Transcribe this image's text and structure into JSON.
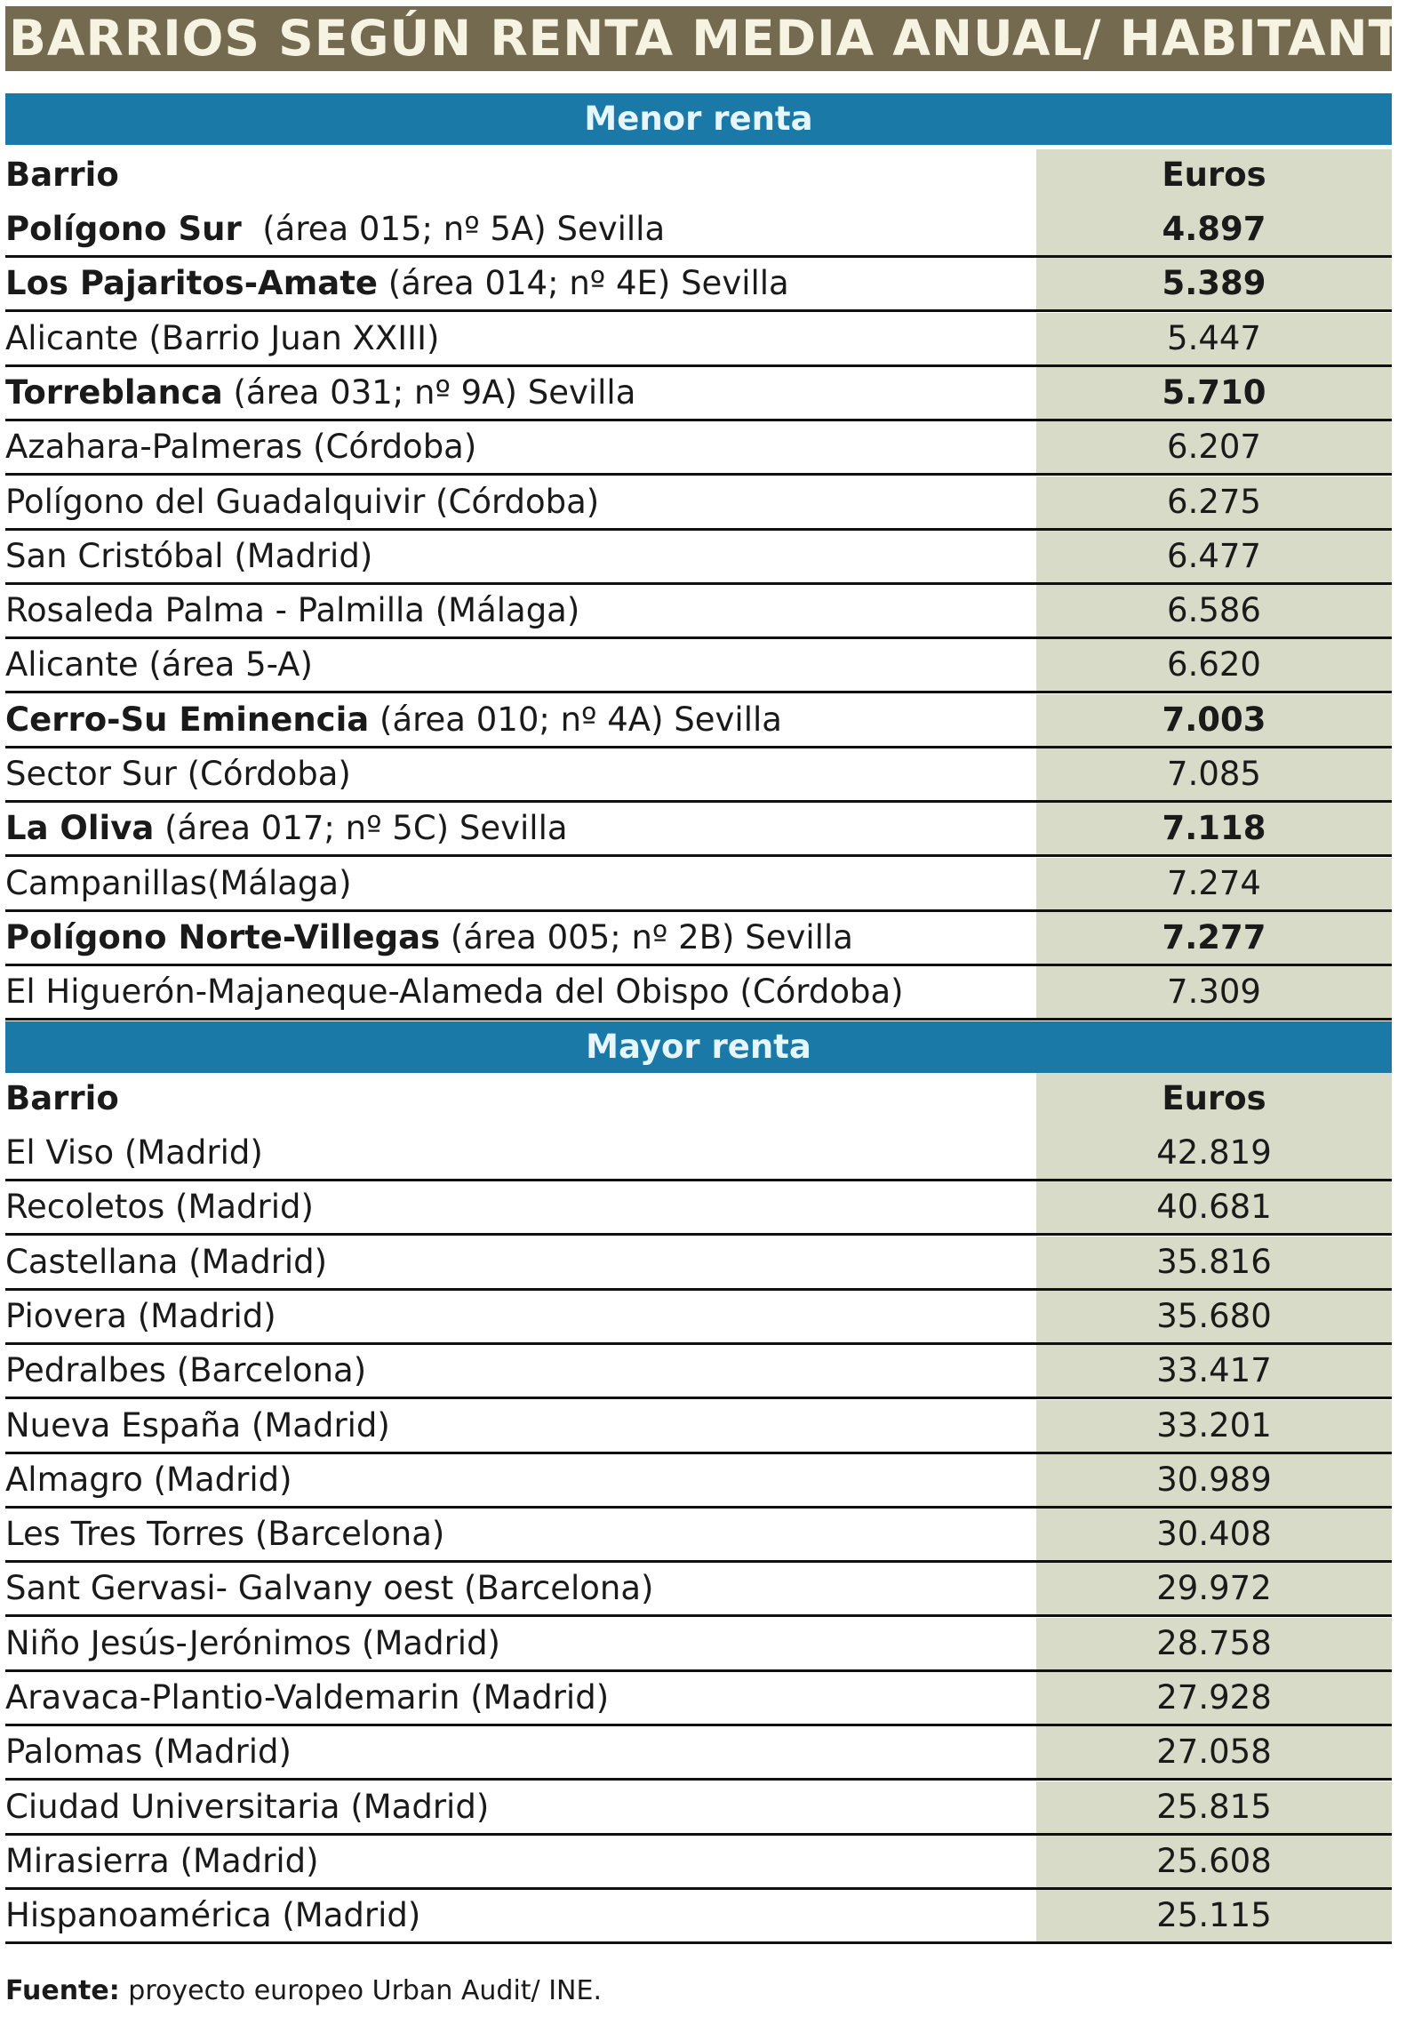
{
  "title": "BARRIOS SEGÚN RENTA MEDIA ANUAL/ HABITANTE",
  "sections": [
    {
      "label": "Menor renta",
      "col_barrio": "Barrio",
      "col_euros": "Euros",
      "rows": [
        {
          "name_bold": "Polígono Sur",
          "name_rest": "  (área 015; nº 5A) Sevilla",
          "value": "4.897",
          "bold": true
        },
        {
          "name_bold": "Los Pajaritos-Amate",
          "name_rest": " (área 014; nº 4E) Sevilla",
          "value": "5.389",
          "bold": true
        },
        {
          "name_bold": "",
          "name_rest": "Alicante (Barrio Juan XXIII)",
          "value": "5.447",
          "bold": false
        },
        {
          "name_bold": "Torreblanca",
          "name_rest": " (área 031; nº 9A) Sevilla",
          "value": "5.710",
          "bold": true
        },
        {
          "name_bold": "",
          "name_rest": "Azahara-Palmeras (Córdoba)",
          "value": "6.207",
          "bold": false
        },
        {
          "name_bold": "",
          "name_rest": "Polígono del Guadalquivir (Córdoba)",
          "value": "6.275",
          "bold": false
        },
        {
          "name_bold": "",
          "name_rest": "San Cristóbal (Madrid)",
          "value": "6.477",
          "bold": false
        },
        {
          "name_bold": "",
          "name_rest": "Rosaleda Palma - Palmilla (Málaga)",
          "value": "6.586",
          "bold": false
        },
        {
          "name_bold": "",
          "name_rest": "Alicante (área 5-A)",
          "value": "6.620",
          "bold": false
        },
        {
          "name_bold": "Cerro-Su Eminencia",
          "name_rest": " (área 010; nº 4A) Sevilla",
          "value": "7.003",
          "bold": true
        },
        {
          "name_bold": "",
          "name_rest": "Sector Sur (Córdoba)",
          "value": "7.085",
          "bold": false
        },
        {
          "name_bold": "La Oliva",
          "name_rest": " (área 017; nº 5C) Sevilla",
          "value": "7.118",
          "bold": true
        },
        {
          "name_bold": "",
          "name_rest": "Campanillas(Málaga)",
          "value": "7.274",
          "bold": false
        },
        {
          "name_bold": "Polígono Norte-Villegas",
          "name_rest": " (área 005; nº 2B) Sevilla",
          "value": "7.277",
          "bold": true
        },
        {
          "name_bold": "",
          "name_rest": "El Higuerón-Majaneque-Alameda del Obispo (Córdoba)",
          "value": "7.309",
          "bold": false
        }
      ]
    },
    {
      "label": "Mayor renta",
      "col_barrio": "Barrio",
      "col_euros": "Euros",
      "rows": [
        {
          "name_bold": "",
          "name_rest": "El Viso (Madrid)",
          "value": "42.819",
          "bold": false
        },
        {
          "name_bold": "",
          "name_rest": "Recoletos (Madrid)",
          "value": "40.681",
          "bold": false
        },
        {
          "name_bold": "",
          "name_rest": "Castellana (Madrid)",
          "value": "35.816",
          "bold": false
        },
        {
          "name_bold": "",
          "name_rest": "Piovera (Madrid)",
          "value": "35.680",
          "bold": false
        },
        {
          "name_bold": "",
          "name_rest": "Pedralbes (Barcelona)",
          "value": "33.417",
          "bold": false
        },
        {
          "name_bold": "",
          "name_rest": "Nueva España (Madrid)",
          "value": "33.201",
          "bold": false
        },
        {
          "name_bold": "",
          "name_rest": "Almagro (Madrid)",
          "value": "30.989",
          "bold": false
        },
        {
          "name_bold": "",
          "name_rest": "Les Tres Torres (Barcelona)",
          "value": "30.408",
          "bold": false
        },
        {
          "name_bold": "",
          "name_rest": "Sant Gervasi- Galvany oest (Barcelona)",
          "value": "29.972",
          "bold": false
        },
        {
          "name_bold": "",
          "name_rest": "Niño Jesús-Jerónimos (Madrid)",
          "value": "28.758",
          "bold": false
        },
        {
          "name_bold": "",
          "name_rest": "Aravaca-Plantio-Valdemarin (Madrid)",
          "value": "27.928",
          "bold": false
        },
        {
          "name_bold": "",
          "name_rest": "Palomas (Madrid)",
          "value": "27.058",
          "bold": false
        },
        {
          "name_bold": "",
          "name_rest": "Ciudad Universitaria (Madrid)",
          "value": "25.815",
          "bold": false
        },
        {
          "name_bold": "",
          "name_rest": "Mirasierra (Madrid)",
          "value": "25.608",
          "bold": false
        },
        {
          "name_bold": "",
          "name_rest": "Hispanoamérica (Madrid)",
          "value": "25.115",
          "bold": false
        }
      ]
    }
  ],
  "source": {
    "label": "Fuente:",
    "text": " proyecto europeo Urban Audit/ INE."
  },
  "colors": {
    "title_bg": "#746a4f",
    "band_bg": "#1a79a6",
    "value_bg": "#d9dbc9"
  }
}
